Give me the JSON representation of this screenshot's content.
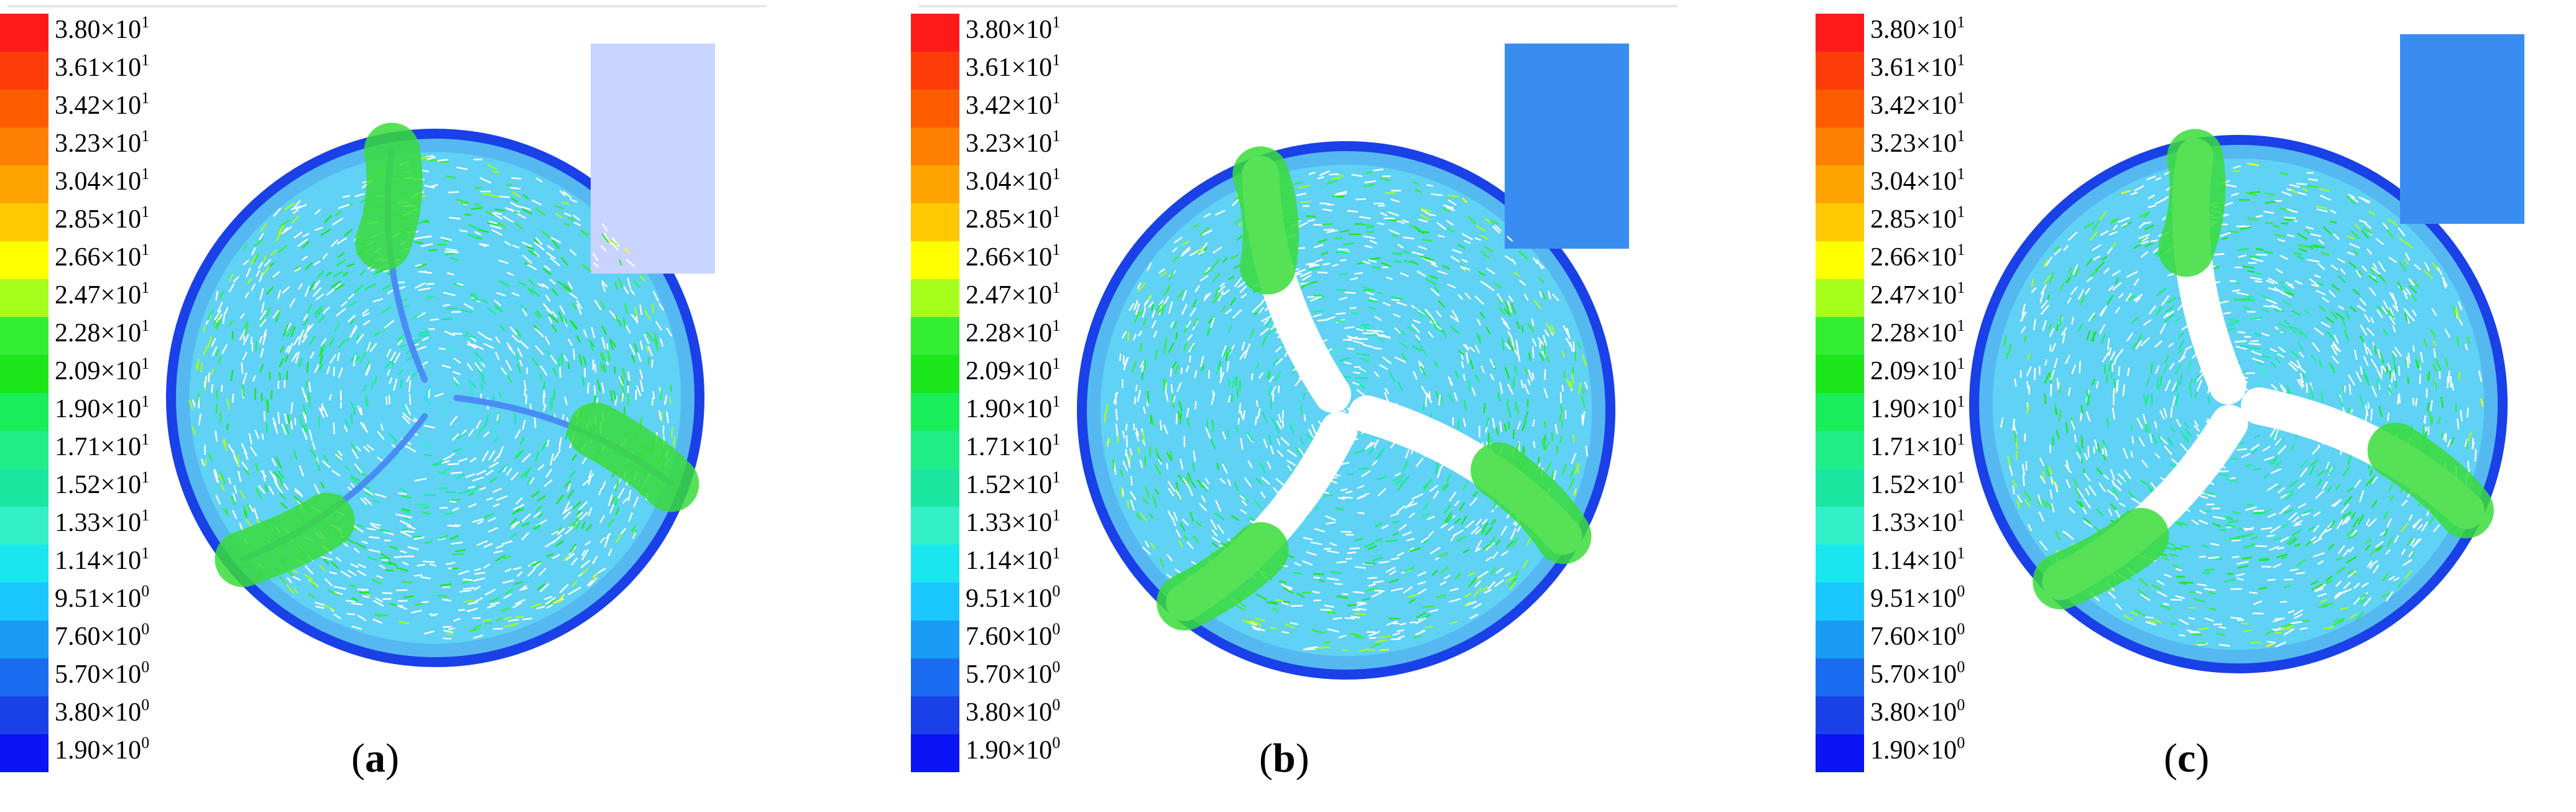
{
  "colormap": [
    {
      "label": "3.80×10",
      "exp": "1",
      "color": "#ff1a1a"
    },
    {
      "label": "3.61×10",
      "exp": "1",
      "color": "#ff3d0a"
    },
    {
      "label": "3.42×10",
      "exp": "1",
      "color": "#ff5c00"
    },
    {
      "label": "3.23×10",
      "exp": "1",
      "color": "#ff8000"
    },
    {
      "label": "3.04×10",
      "exp": "1",
      "color": "#ffa300"
    },
    {
      "label": "2.85×10",
      "exp": "1",
      "color": "#ffc800"
    },
    {
      "label": "2.66×10",
      "exp": "1",
      "color": "#ffff00"
    },
    {
      "label": "2.47×10",
      "exp": "1",
      "color": "#a6ff1a"
    },
    {
      "label": "2.28×10",
      "exp": "1",
      "color": "#33ee33"
    },
    {
      "label": "2.09×10",
      "exp": "1",
      "color": "#1ae61a"
    },
    {
      "label": "1.90×10",
      "exp": "1",
      "color": "#1aee5a"
    },
    {
      "label": "1.71×10",
      "exp": "1",
      "color": "#22ee88"
    },
    {
      "label": "1.52×10",
      "exp": "1",
      "color": "#1ae6a0"
    },
    {
      "label": "1.33×10",
      "exp": "1",
      "color": "#33f0c8"
    },
    {
      "label": "1.14×10",
      "exp": "1",
      "color": "#1ae6f0"
    },
    {
      "label": "9.51×10",
      "exp": "0",
      "color": "#1ac8ff"
    },
    {
      "label": "7.60×10",
      "exp": "0",
      "color": "#1a9cf5"
    },
    {
      "label": "5.70×10",
      "exp": "0",
      "color": "#1a6cf0"
    },
    {
      "label": "3.80×10",
      "exp": "0",
      "color": "#1a40e8"
    },
    {
      "label": "1.90×10",
      "exp": "0",
      "color": "#0a14f5"
    }
  ],
  "panels": [
    {
      "caption": "a"
    },
    {
      "caption": "b"
    },
    {
      "caption": "c"
    }
  ]
}
